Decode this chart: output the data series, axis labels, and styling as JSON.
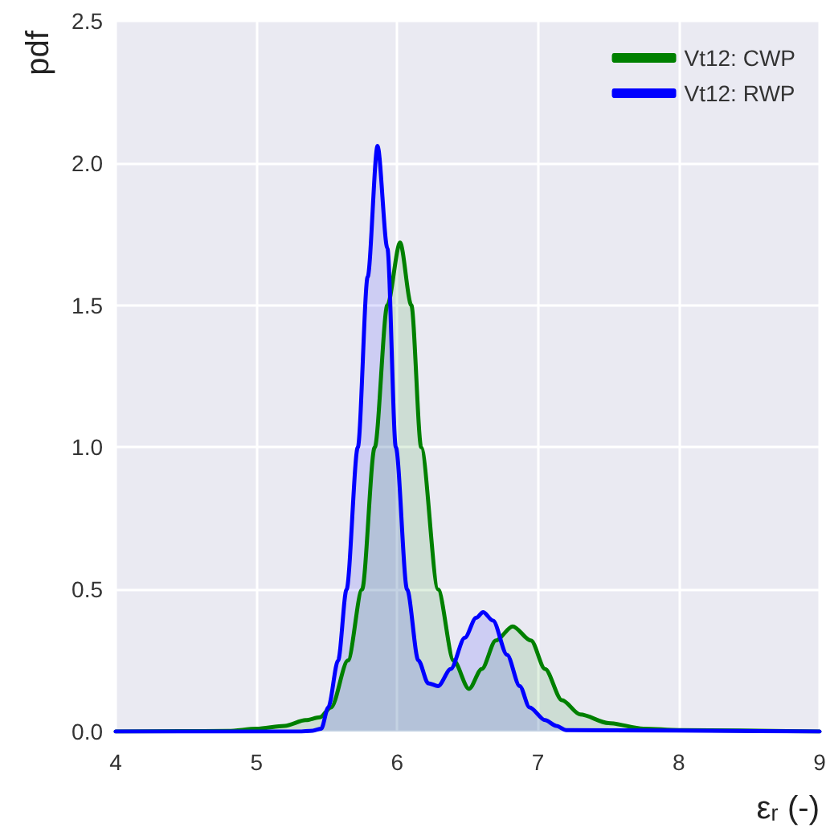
{
  "chart_data": {
    "type": "area",
    "xlabel": "εᵣ (-)",
    "ylabel": "pdf",
    "xlim": [
      4,
      9
    ],
    "xticks": [
      4,
      5,
      6,
      7,
      8,
      9
    ],
    "ylim": [
      0,
      2.5
    ],
    "yticks": [
      {
        "value": 0,
        "label": "0.0"
      },
      {
        "value": 0.5,
        "label": "0.5"
      },
      {
        "value": 1,
        "label": "1.0"
      },
      {
        "value": 1.5,
        "label": "1.5"
      },
      {
        "value": 2,
        "label": "2.0"
      },
      {
        "value": 2.5,
        "label": "2.5"
      }
    ],
    "grid": true,
    "legend": "top right",
    "marker": "none",
    "line_style": "solid",
    "series": [
      {
        "name": "Vt12: CWP",
        "color": "#008000",
        "x": [
          4,
          4.8,
          5.0,
          5.2,
          5.35,
          5.45,
          5.53,
          5.65,
          5.75,
          5.84,
          5.93,
          6.02,
          6.1,
          6.17,
          6.29,
          6.4,
          6.51,
          6.6,
          6.7,
          6.82,
          6.95,
          7.05,
          7.17,
          7.3,
          7.5,
          7.75,
          8.0,
          9
        ],
        "values": [
          0,
          0.002,
          0.01,
          0.02,
          0.04,
          0.05,
          0.085,
          0.25,
          0.5,
          1.0,
          1.5,
          1.72,
          1.5,
          1.0,
          0.5,
          0.25,
          0.15,
          0.22,
          0.32,
          0.37,
          0.32,
          0.22,
          0.11,
          0.06,
          0.03,
          0.01,
          0.005,
          0
        ]
      },
      {
        "name": "Vt12: RWP",
        "color": "#0000ff",
        "x": [
          4,
          5.3,
          5.4,
          5.46,
          5.51,
          5.58,
          5.64,
          5.72,
          5.79,
          5.86,
          5.93,
          5.99,
          6.07,
          6.15,
          6.22,
          6.29,
          6.38,
          6.48,
          6.56,
          6.61,
          6.68,
          6.78,
          6.87,
          6.94,
          7.05,
          7.13,
          7.2,
          9
        ],
        "values": [
          0,
          0,
          0.003,
          0.01,
          0.085,
          0.25,
          0.5,
          1.0,
          1.6,
          2.06,
          1.7,
          1.0,
          0.5,
          0.25,
          0.17,
          0.16,
          0.22,
          0.33,
          0.4,
          0.42,
          0.39,
          0.27,
          0.16,
          0.085,
          0.04,
          0.02,
          0.005,
          0
        ]
      }
    ]
  }
}
